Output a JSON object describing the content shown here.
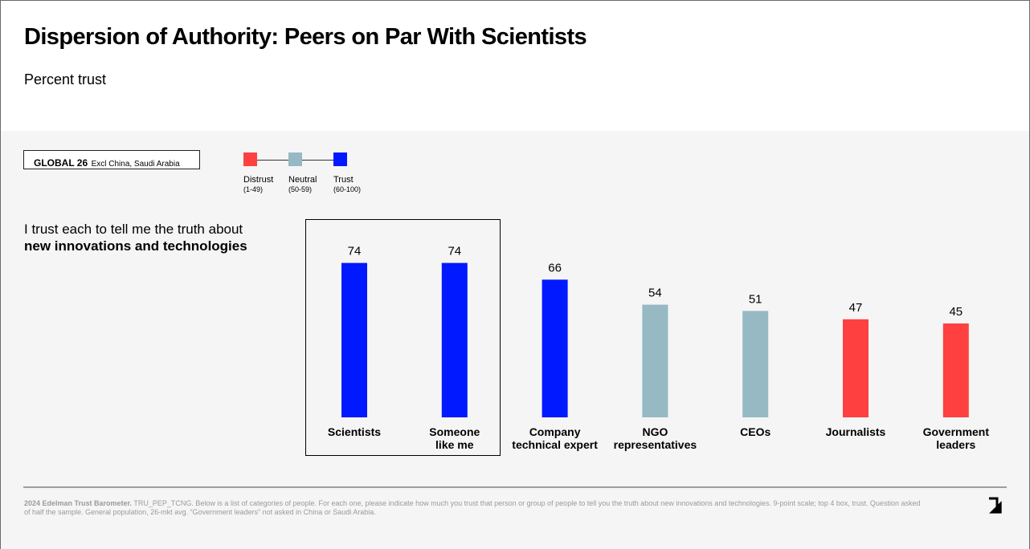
{
  "header": {
    "title": "Dispersion of Authority: Peers on Par With Scientists",
    "subtitle": "Percent trust"
  },
  "region": {
    "label": "GLOBAL 26",
    "note": "Excl China, Saudi Arabia"
  },
  "legend": {
    "items": [
      {
        "label": "Distrust",
        "range": "(1-49)",
        "color": "#ff4040"
      },
      {
        "label": "Neutral",
        "range": "(50-59)",
        "color": "#96b9c4"
      },
      {
        "label": "Trust",
        "range": "(60-100)",
        "color": "#0019ff"
      }
    ]
  },
  "question": {
    "prefix": "I trust each to tell me the truth about",
    "emphasis": "new innovations and technologies"
  },
  "chart_data": {
    "type": "bar",
    "categories": [
      [
        "Scientists"
      ],
      [
        "Someone",
        "like me"
      ],
      [
        "Company",
        "technical expert"
      ],
      [
        "NGO",
        "representatives"
      ],
      [
        "CEOs"
      ],
      [
        "Journalists"
      ],
      [
        "Government",
        "leaders"
      ]
    ],
    "values": [
      74,
      74,
      66,
      54,
      51,
      47,
      45
    ],
    "colors": [
      "#0019ff",
      "#0019ff",
      "#0019ff",
      "#96b9c4",
      "#96b9c4",
      "#ff4040",
      "#ff4040"
    ],
    "ylim": [
      0,
      100
    ],
    "highlighted_categories": [
      "Scientists",
      "Someone like me"
    ],
    "grid": false
  },
  "footer": {
    "source_bold": "2024 Edelman Trust Barometer.",
    "source_text": "TRU_PEP_TCNG. Below is a list of categories of people. For each one, please indicate how much you trust that person or group of people to tell you the truth about new innovations and technologies. 9-point scale; top 4 box, trust. Question asked of half the sample. General population, 26-mkt avg. “Government leaders” not asked in China or Saudi Arabia."
  },
  "icons": {
    "next": "arrow-down-right-icon"
  }
}
